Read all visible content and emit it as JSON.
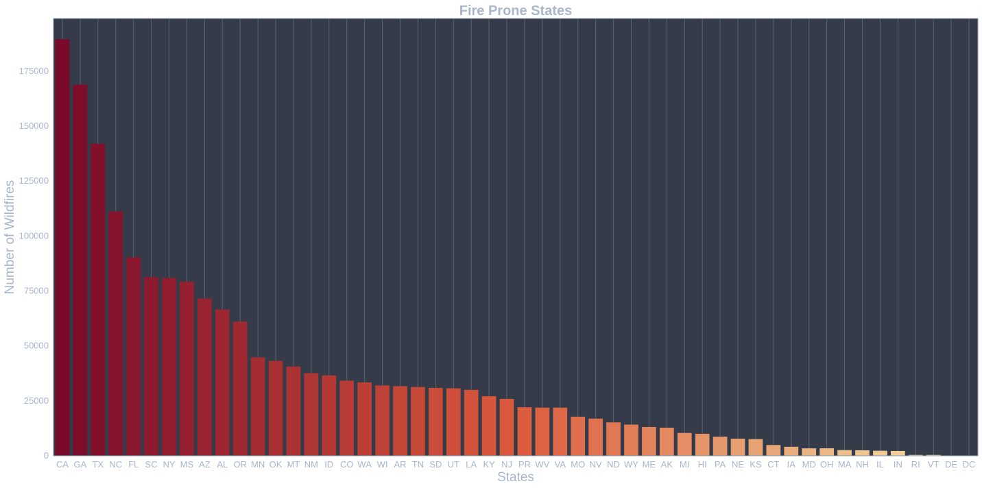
{
  "chart_data": {
    "type": "bar",
    "title": "Fire Prone States",
    "xlabel": "States",
    "ylabel": "Number of Wildfires",
    "ylim": [
      0,
      199000
    ],
    "yticks": [
      0,
      25000,
      50000,
      75000,
      100000,
      125000,
      150000,
      175000
    ],
    "grid": "vertical",
    "colors": {
      "plot_background": "#353b48",
      "grid": "#5a6672",
      "text": "#a9b6cc",
      "frame": "#8a9aa8",
      "bar_start": "#7a0a2a",
      "bar_mid": "#dc5a3c",
      "bar_end": "#f3e4a8"
    },
    "categories": [
      "CA",
      "GA",
      "TX",
      "NC",
      "FL",
      "SC",
      "NY",
      "MS",
      "AZ",
      "AL",
      "OR",
      "MN",
      "OK",
      "MT",
      "NM",
      "ID",
      "CO",
      "WA",
      "WI",
      "AR",
      "TN",
      "SD",
      "UT",
      "LA",
      "KY",
      "NJ",
      "PR",
      "WV",
      "VA",
      "MO",
      "NV",
      "ND",
      "WY",
      "ME",
      "AK",
      "MI",
      "HI",
      "PA",
      "NE",
      "KS",
      "CT",
      "IA",
      "MD",
      "OH",
      "MA",
      "NH",
      "IL",
      "IN",
      "RI",
      "VT",
      "DE",
      "DC"
    ],
    "values": [
      189600,
      168900,
      142000,
      111200,
      90300,
      81300,
      80900,
      79200,
      71600,
      66600,
      61100,
      44800,
      43200,
      40600,
      37600,
      36600,
      34200,
      33400,
      32000,
      31700,
      31300,
      30900,
      30700,
      30000,
      27100,
      25900,
      22100,
      21900,
      21900,
      17800,
      16900,
      15200,
      14200,
      13100,
      12800,
      10400,
      10000,
      8700,
      7800,
      7600,
      4900,
      4100,
      3400,
      3400,
      2600,
      2500,
      2300,
      2200,
      400,
      400,
      50,
      50
    ]
  }
}
